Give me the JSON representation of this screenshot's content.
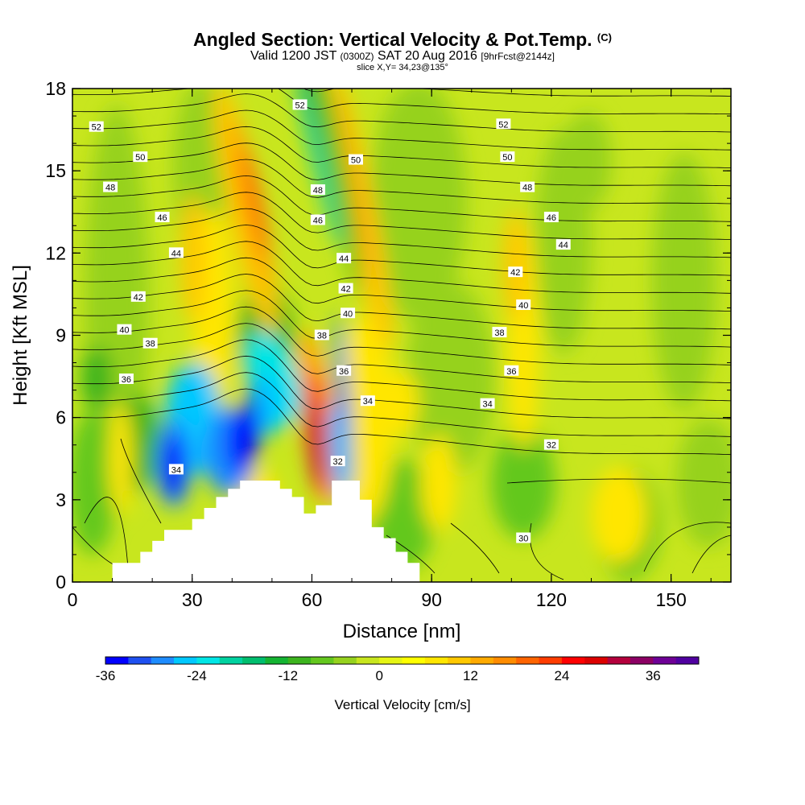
{
  "title": {
    "main": "Angled Section: Vertical Velocity & Pot.Temp.",
    "main_tag": "(C)",
    "valid_prefix": "Valid 1200 JST",
    "valid_z": "(0300Z)",
    "valid_date": "SAT 20 Aug 2016",
    "valid_fcst": "[9hrFcst@2144z]",
    "slice": "slice X,Y= 34,23@135°"
  },
  "chart_data": {
    "type": "heatmap",
    "xlabel": "Distance [nm]",
    "ylabel": "Height [Kft MSL]",
    "xlim": [
      0,
      165
    ],
    "ylim": [
      0,
      18
    ],
    "x_ticks": [
      "0",
      "30",
      "60",
      "90",
      "120",
      "150"
    ],
    "x_tick_values": [
      0,
      30,
      60,
      90,
      120,
      150
    ],
    "y_ticks": [
      "0",
      "3",
      "6",
      "9",
      "12",
      "15",
      "18"
    ],
    "y_tick_values": [
      0,
      3,
      6,
      9,
      12,
      15,
      18
    ],
    "colorbar": {
      "label": "Vertical Velocity [cm/s]",
      "tick_labels": [
        "-36",
        "-24",
        "-12",
        "0",
        "12",
        "24",
        "36"
      ],
      "tick_values": [
        -36,
        -24,
        -12,
        0,
        12,
        24,
        36
      ],
      "levels": [
        -36,
        -33,
        -30,
        -27,
        -24,
        -21,
        -18,
        -15,
        -12,
        -9,
        -6,
        -3,
        0,
        3,
        6,
        9,
        12,
        15,
        18,
        21,
        24,
        27,
        30,
        33,
        36,
        39,
        42
      ],
      "colors": [
        "#0000ff",
        "#1e50f0",
        "#1e8cff",
        "#00c8ff",
        "#00e6e6",
        "#00d2a0",
        "#00be6e",
        "#14b432",
        "#3cb41e",
        "#64c81e",
        "#96d21e",
        "#c8e61e",
        "#e6f514",
        "#ffff00",
        "#ffe600",
        "#ffc800",
        "#ffaa00",
        "#ff8c00",
        "#ff6400",
        "#ff3c00",
        "#ff0000",
        "#dc0000",
        "#b4003c",
        "#8c0064",
        "#6e0096",
        "#5000a0"
      ]
    },
    "terrain_nm_kft": [
      [
        0,
        0
      ],
      [
        10,
        0
      ],
      [
        10,
        0.7
      ],
      [
        17,
        0.7
      ],
      [
        17,
        1.1
      ],
      [
        20,
        1.1
      ],
      [
        20,
        1.5
      ],
      [
        23,
        1.5
      ],
      [
        23,
        1.9
      ],
      [
        30,
        1.9
      ],
      [
        30,
        2.3
      ],
      [
        33,
        2.3
      ],
      [
        33,
        2.7
      ],
      [
        36,
        2.7
      ],
      [
        36,
        3.1
      ],
      [
        39,
        3.1
      ],
      [
        39,
        3.4
      ],
      [
        42,
        3.4
      ],
      [
        42,
        3.7
      ],
      [
        52,
        3.7
      ],
      [
        52,
        3.4
      ],
      [
        55,
        3.4
      ],
      [
        55,
        3.1
      ],
      [
        58,
        3.1
      ],
      [
        58,
        2.5
      ],
      [
        61,
        2.5
      ],
      [
        61,
        2.8
      ],
      [
        65,
        2.8
      ],
      [
        65,
        3.7
      ],
      [
        72,
        3.7
      ],
      [
        72,
        3.0
      ],
      [
        75,
        3.0
      ],
      [
        75,
        2.0
      ],
      [
        78,
        2.0
      ],
      [
        78,
        1.6
      ],
      [
        81,
        1.6
      ],
      [
        81,
        1.1
      ],
      [
        84,
        1.1
      ],
      [
        84,
        0.7
      ],
      [
        87,
        0.7
      ],
      [
        87,
        0
      ],
      [
        165,
        0
      ]
    ],
    "theta_contour_labels": [
      {
        "text": "52",
        "x": 6,
        "y": 16.6
      },
      {
        "text": "50",
        "x": 17,
        "y": 15.5
      },
      {
        "text": "48",
        "x": 9.5,
        "y": 14.4
      },
      {
        "text": "46",
        "x": 22.5,
        "y": 13.3
      },
      {
        "text": "44",
        "x": 26,
        "y": 12.0
      },
      {
        "text": "42",
        "x": 16.5,
        "y": 10.4
      },
      {
        "text": "40",
        "x": 13,
        "y": 9.2
      },
      {
        "text": "38",
        "x": 19.5,
        "y": 8.7
      },
      {
        "text": "36",
        "x": 13.5,
        "y": 7.4
      },
      {
        "text": "34",
        "x": 26,
        "y": 4.1
      },
      {
        "text": "52",
        "x": 57,
        "y": 17.4
      },
      {
        "text": "50",
        "x": 71,
        "y": 15.4
      },
      {
        "text": "48",
        "x": 61.5,
        "y": 14.3
      },
      {
        "text": "46",
        "x": 61.5,
        "y": 13.2
      },
      {
        "text": "44",
        "x": 68,
        "y": 11.8
      },
      {
        "text": "42",
        "x": 68.5,
        "y": 10.7
      },
      {
        "text": "40",
        "x": 69,
        "y": 9.8
      },
      {
        "text": "38",
        "x": 62.5,
        "y": 9.0
      },
      {
        "text": "36",
        "x": 68,
        "y": 7.7
      },
      {
        "text": "34",
        "x": 74,
        "y": 6.6
      },
      {
        "text": "32",
        "x": 66.5,
        "y": 4.4
      },
      {
        "text": "52",
        "x": 108,
        "y": 16.7
      },
      {
        "text": "50",
        "x": 109,
        "y": 15.5
      },
      {
        "text": "48",
        "x": 114,
        "y": 14.4
      },
      {
        "text": "46",
        "x": 120,
        "y": 13.3
      },
      {
        "text": "44",
        "x": 123,
        "y": 12.3
      },
      {
        "text": "42",
        "x": 111,
        "y": 11.3
      },
      {
        "text": "40",
        "x": 113,
        "y": 10.1
      },
      {
        "text": "38",
        "x": 107,
        "y": 9.1
      },
      {
        "text": "36",
        "x": 110,
        "y": 7.7
      },
      {
        "text": "34",
        "x": 104,
        "y": 6.5
      },
      {
        "text": "32",
        "x": 120,
        "y": 5.0
      },
      {
        "text": "30",
        "x": 113,
        "y": 1.6
      }
    ]
  },
  "colors": {
    "contour": "#000000",
    "terrain": "#ffffff"
  }
}
